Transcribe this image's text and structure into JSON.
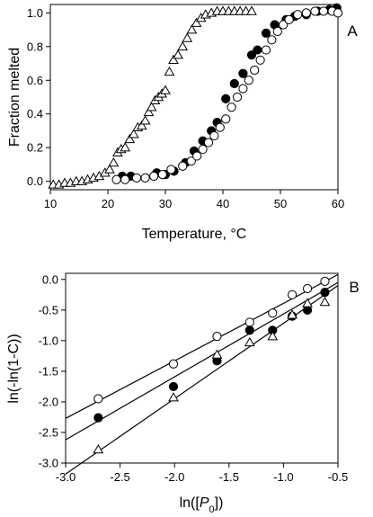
{
  "chart_data": [
    {
      "panel": "A",
      "type": "scatter",
      "xlabel": "Temperature, °C",
      "ylabel": "Fraction melted",
      "xlim": [
        10,
        60
      ],
      "ylim": [
        -0.05,
        1.05
      ],
      "xticks": [
        10,
        20,
        30,
        40,
        50,
        60
      ],
      "xtick_labels": [
        "10",
        "20",
        "30",
        "40",
        "50",
        "60"
      ],
      "yticks": [
        0.0,
        0.2,
        0.4,
        0.6,
        0.8,
        1.0
      ],
      "ytick_labels": [
        "0.0",
        "0.2",
        "0.4",
        "0.6",
        "0.8",
        "1.0"
      ],
      "grid": false,
      "series": [
        {
          "marker": "open-triangle",
          "x": [
            10.5,
            11.5,
            12.5,
            13.5,
            14.5,
            15.5,
            16.5,
            17.5,
            18.5,
            19.5,
            20.3,
            21.0,
            21.7,
            22.3,
            23.0,
            23.8,
            24.5,
            25.2,
            25.9,
            26.5,
            27.1,
            27.6,
            28.2,
            28.8,
            29.4,
            30.0,
            30.7,
            31.4,
            32.2,
            33.0,
            33.8,
            34.6,
            35.4,
            36.2,
            37.0,
            38.0,
            39.0,
            40.0,
            41.0,
            42.0,
            43.0,
            44.0,
            45.0
          ],
          "y": [
            -0.02,
            -0.02,
            -0.01,
            -0.01,
            0.0,
            0.0,
            0.01,
            0.02,
            0.03,
            0.05,
            0.07,
            0.11,
            0.17,
            0.19,
            0.2,
            0.25,
            0.28,
            0.32,
            0.33,
            0.36,
            0.41,
            0.44,
            0.48,
            0.5,
            0.52,
            0.54,
            0.65,
            0.72,
            0.75,
            0.8,
            0.85,
            0.9,
            0.94,
            0.97,
            0.99,
            1.0,
            1.01,
            1.01,
            1.01,
            1.01,
            1.01,
            1.01,
            1.01
          ]
        },
        {
          "marker": "filled-circle",
          "x": [
            22.5,
            24.0,
            28.5,
            30.0,
            31.5,
            33.5,
            35.0,
            36.5,
            38.0,
            39.0,
            40.5,
            42.0,
            43.5,
            45.0,
            46.0,
            47.5,
            49.0,
            51.0,
            52.5,
            54.5,
            56.5,
            58.5,
            59.8
          ],
          "y": [
            0.03,
            0.03,
            0.05,
            0.04,
            0.06,
            0.11,
            0.18,
            0.24,
            0.3,
            0.35,
            0.49,
            0.58,
            0.64,
            0.75,
            0.78,
            0.88,
            0.93,
            0.96,
            0.98,
            0.99,
            1.01,
            1.02,
            1.03
          ]
        },
        {
          "marker": "open-circle",
          "x": [
            21.5,
            23.0,
            25.0,
            26.5,
            28.0,
            29.5,
            31.0,
            33.0,
            34.5,
            35.5,
            36.5,
            37.5,
            38.5,
            39.5,
            40.5,
            41.5,
            42.5,
            43.5,
            44.5,
            45.5,
            46.5,
            47.5,
            48.5,
            49.5,
            50.5,
            51.5,
            53.0,
            54.5,
            56.0,
            57.5,
            59.0,
            60.0
          ],
          "y": [
            0.01,
            0.01,
            0.02,
            0.02,
            0.03,
            0.04,
            0.07,
            0.09,
            0.12,
            0.15,
            0.19,
            0.23,
            0.27,
            0.32,
            0.37,
            0.44,
            0.5,
            0.55,
            0.6,
            0.66,
            0.72,
            0.78,
            0.84,
            0.89,
            0.93,
            0.96,
            0.99,
            1.0,
            1.01,
            1.01,
            1.01,
            1.0
          ]
        }
      ]
    },
    {
      "panel": "B",
      "type": "scatter",
      "xlabel": "ln([P0])",
      "ylabel": "ln(-ln(1-C))",
      "xlim": [
        -3.0,
        -0.5
      ],
      "ylim": [
        -3.0,
        0.1
      ],
      "xticks": [
        -3.0,
        -2.5,
        -2.0,
        -1.5,
        -1.0,
        -0.5
      ],
      "xtick_labels": [
        "-3.0",
        "-2.5",
        "-2.0",
        "-1.5",
        "-1.0",
        "-0.5"
      ],
      "yticks": [
        -3.0,
        -2.5,
        -2.0,
        -1.5,
        -1.0,
        -0.5,
        0.0
      ],
      "ytick_labels": [
        "-3.0",
        "-2.5",
        "-2.0",
        "-1.5",
        "-1.0",
        "-0.5",
        "0.0"
      ],
      "grid": false,
      "series": [
        {
          "marker": "open-circle",
          "x": [
            -2.7,
            -2.01,
            -1.61,
            -1.31,
            -1.1,
            -0.92,
            -0.78,
            -0.62
          ],
          "y": [
            -1.95,
            -1.38,
            -0.93,
            -0.7,
            -0.55,
            -0.25,
            -0.15,
            -0.03
          ],
          "fit": {
            "x": [
              -3.0,
              -0.5
            ],
            "y": [
              -2.27,
              0.08
            ]
          }
        },
        {
          "marker": "filled-circle",
          "x": [
            -2.7,
            -2.01,
            -1.61,
            -1.31,
            -1.1,
            -0.92,
            -0.78,
            -0.62
          ],
          "y": [
            -2.26,
            -1.75,
            -1.33,
            -0.83,
            -0.83,
            -0.6,
            -0.5,
            -0.21
          ],
          "fit": {
            "x": [
              -3.0,
              -0.5
            ],
            "y": [
              -2.62,
              -0.05
            ]
          }
        },
        {
          "marker": "open-triangle",
          "x": [
            -2.7,
            -2.01,
            -1.61,
            -1.31,
            -1.1,
            -0.92,
            -0.78,
            -0.62
          ],
          "y": [
            -2.78,
            -1.93,
            -1.23,
            -1.03,
            -0.93,
            -0.58,
            -0.39,
            -0.37
          ],
          "fit": {
            "x": [
              -3.0,
              -0.5
            ],
            "y": [
              -3.18,
              -0.1
            ]
          }
        }
      ]
    }
  ],
  "panel_letters": [
    "A",
    "B"
  ],
  "ylabel_A": "Fraction melted",
  "xlabel_A": "Temperature, °C",
  "ylabel_B": "ln(-ln(1-C))",
  "xlabel_B_prefix": "ln([",
  "xlabel_B_var": "P",
  "xlabel_B_sub": "0",
  "xlabel_B_suffix": "])"
}
